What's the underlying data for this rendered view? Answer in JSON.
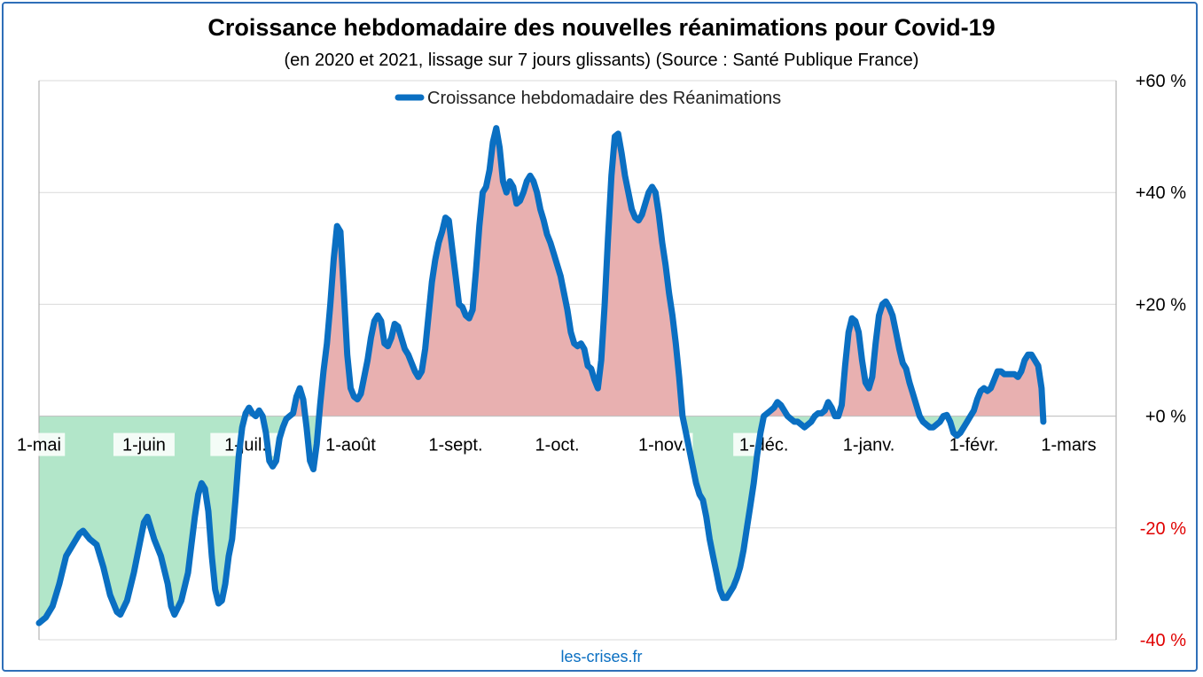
{
  "chart_data": {
    "type": "area",
    "title": "Croissance hebdomadaire des nouvelles réanimations pour Covid-19",
    "subtitle": "(en 2020 et 2021, lissage sur 7 jours glissants) (Source : Santé Publique France)",
    "source": "les-crises.fr",
    "xlabel": "",
    "ylabel": "",
    "ylim": [
      -40,
      60
    ],
    "yticks": [
      {
        "value": 60,
        "label": "+60 %"
      },
      {
        "value": 40,
        "label": "+40 %"
      },
      {
        "value": 20,
        "label": "+20 %"
      },
      {
        "value": 0,
        "label": "+0 %"
      },
      {
        "value": -20,
        "label": "-20 %"
      },
      {
        "value": -40,
        "label": "-40 %"
      }
    ],
    "xlim": [
      0,
      318
    ],
    "xticks": [
      {
        "day": 0,
        "label": "1-mai"
      },
      {
        "day": 31,
        "label": "1-juin"
      },
      {
        "day": 61,
        "label": "1-juil."
      },
      {
        "day": 92,
        "label": "1-août"
      },
      {
        "day": 123,
        "label": "1-sept."
      },
      {
        "day": 153,
        "label": "1-oct."
      },
      {
        "day": 184,
        "label": "1-nov."
      },
      {
        "day": 214,
        "label": "1-déc."
      },
      {
        "day": 245,
        "label": "1-janv."
      },
      {
        "day": 276,
        "label": "1-févr."
      },
      {
        "day": 304,
        "label": "1-mars"
      }
    ],
    "grid": true,
    "legend_position": "top",
    "y_axis_side": "right",
    "series": [
      {
        "name": "Croissance hebdomadaire des Réanimations",
        "color": "#0a6fc2",
        "positive_fill": "#e8b0b0",
        "negative_fill": "#b2e6c9",
        "negative_label_color": "#e00000",
        "points": [
          [
            0,
            -37
          ],
          [
            2,
            -36
          ],
          [
            4,
            -34
          ],
          [
            6,
            -30
          ],
          [
            8,
            -25
          ],
          [
            10,
            -23
          ],
          [
            12,
            -21
          ],
          [
            13,
            -20.5
          ],
          [
            15,
            -22
          ],
          [
            17,
            -23
          ],
          [
            19,
            -27
          ],
          [
            21,
            -32
          ],
          [
            23,
            -35
          ],
          [
            24,
            -35.5
          ],
          [
            26,
            -33
          ],
          [
            28,
            -28
          ],
          [
            30,
            -22
          ],
          [
            31,
            -19
          ],
          [
            32,
            -18
          ],
          [
            34,
            -22
          ],
          [
            36,
            -25
          ],
          [
            38,
            -30
          ],
          [
            39,
            -34
          ],
          [
            40,
            -35.5
          ],
          [
            42,
            -33
          ],
          [
            44,
            -28
          ],
          [
            45,
            -23
          ],
          [
            46,
            -18
          ],
          [
            47,
            -14
          ],
          [
            48,
            -12
          ],
          [
            49,
            -13
          ],
          [
            50,
            -17
          ],
          [
            51,
            -25
          ],
          [
            52,
            -31
          ],
          [
            53,
            -33.5
          ],
          [
            54,
            -33
          ],
          [
            55,
            -30
          ],
          [
            56,
            -25
          ],
          [
            57,
            -22
          ],
          [
            58,
            -15
          ],
          [
            59,
            -7
          ],
          [
            60,
            -2
          ],
          [
            61,
            0.5
          ],
          [
            62,
            1.5
          ],
          [
            63,
            0.5
          ],
          [
            64,
            0
          ],
          [
            65,
            1
          ],
          [
            66,
            0
          ],
          [
            67,
            -3
          ],
          [
            68,
            -8
          ],
          [
            69,
            -9
          ],
          [
            70,
            -8
          ],
          [
            71,
            -4
          ],
          [
            72,
            -2
          ],
          [
            73,
            -0.5
          ],
          [
            74,
            0
          ],
          [
            75,
            0.5
          ],
          [
            76,
            3.5
          ],
          [
            77,
            5
          ],
          [
            78,
            3
          ],
          [
            79,
            -2
          ],
          [
            80,
            -8
          ],
          [
            81,
            -9.5
          ],
          [
            82,
            -5
          ],
          [
            83,
            2
          ],
          [
            84,
            8
          ],
          [
            85,
            13
          ],
          [
            86,
            20
          ],
          [
            87,
            28
          ],
          [
            88,
            34
          ],
          [
            89,
            33
          ],
          [
            90,
            22
          ],
          [
            91,
            11
          ],
          [
            92,
            5
          ],
          [
            93,
            3.5
          ],
          [
            94,
            3
          ],
          [
            95,
            4
          ],
          [
            96,
            7
          ],
          [
            97,
            10
          ],
          [
            98,
            14
          ],
          [
            99,
            17
          ],
          [
            100,
            18
          ],
          [
            101,
            17
          ],
          [
            102,
            13
          ],
          [
            103,
            12.5
          ],
          [
            104,
            14
          ],
          [
            105,
            16.5
          ],
          [
            106,
            16
          ],
          [
            107,
            14
          ],
          [
            108,
            12
          ],
          [
            109,
            11
          ],
          [
            110,
            9.5
          ],
          [
            111,
            8
          ],
          [
            112,
            7
          ],
          [
            113,
            8
          ],
          [
            114,
            12
          ],
          [
            115,
            18
          ],
          [
            116,
            24
          ],
          [
            117,
            28
          ],
          [
            118,
            31
          ],
          [
            119,
            33
          ],
          [
            120,
            35.5
          ],
          [
            121,
            35
          ],
          [
            122,
            30
          ],
          [
            123,
            25
          ],
          [
            124,
            20
          ],
          [
            125,
            19.5
          ],
          [
            126,
            18
          ],
          [
            127,
            17.5
          ],
          [
            128,
            19
          ],
          [
            129,
            26
          ],
          [
            130,
            34
          ],
          [
            131,
            40
          ],
          [
            132,
            41
          ],
          [
            133,
            44
          ],
          [
            134,
            49
          ],
          [
            135,
            51.5
          ],
          [
            136,
            48
          ],
          [
            137,
            42
          ],
          [
            138,
            40
          ],
          [
            139,
            42
          ],
          [
            140,
            41
          ],
          [
            141,
            38
          ],
          [
            142,
            38.5
          ],
          [
            143,
            40
          ],
          [
            144,
            42
          ],
          [
            145,
            43
          ],
          [
            146,
            42
          ],
          [
            147,
            40
          ],
          [
            148,
            37
          ],
          [
            149,
            35
          ],
          [
            150,
            32.5
          ],
          [
            151,
            31
          ],
          [
            152,
            29
          ],
          [
            153,
            27
          ],
          [
            154,
            25
          ],
          [
            155,
            22
          ],
          [
            156,
            19
          ],
          [
            157,
            15
          ],
          [
            158,
            13
          ],
          [
            159,
            12.5
          ],
          [
            160,
            13
          ],
          [
            161,
            12
          ],
          [
            162,
            9
          ],
          [
            163,
            8.5
          ],
          [
            164,
            6.5
          ],
          [
            165,
            5
          ],
          [
            166,
            10
          ],
          [
            167,
            20
          ],
          [
            168,
            32
          ],
          [
            169,
            43
          ],
          [
            170,
            50
          ],
          [
            171,
            50.5
          ],
          [
            172,
            47
          ],
          [
            173,
            43
          ],
          [
            174,
            40
          ],
          [
            175,
            37
          ],
          [
            176,
            35.5
          ],
          [
            177,
            35
          ],
          [
            178,
            36
          ],
          [
            179,
            38
          ],
          [
            180,
            40
          ],
          [
            181,
            41
          ],
          [
            182,
            40
          ],
          [
            183,
            36
          ],
          [
            184,
            31
          ],
          [
            185,
            27
          ],
          [
            186,
            22
          ],
          [
            187,
            18
          ],
          [
            188,
            13
          ],
          [
            189,
            7
          ],
          [
            190,
            0
          ],
          [
            191,
            -3
          ],
          [
            192,
            -6
          ],
          [
            193,
            -9
          ],
          [
            194,
            -12
          ],
          [
            195,
            -14
          ],
          [
            196,
            -15
          ],
          [
            197,
            -18
          ],
          [
            198,
            -22
          ],
          [
            199,
            -25
          ],
          [
            200,
            -28
          ],
          [
            201,
            -31
          ],
          [
            202,
            -32.5
          ],
          [
            203,
            -32.5
          ],
          [
            204,
            -31.5
          ],
          [
            205,
            -30.5
          ],
          [
            206,
            -29
          ],
          [
            207,
            -27
          ],
          [
            208,
            -24
          ],
          [
            209,
            -20
          ],
          [
            210,
            -16
          ],
          [
            211,
            -12
          ],
          [
            212,
            -7
          ],
          [
            213,
            -3
          ],
          [
            214,
            0
          ],
          [
            215,
            0.5
          ],
          [
            216,
            1
          ],
          [
            217,
            1.5
          ],
          [
            218,
            2.5
          ],
          [
            219,
            2
          ],
          [
            220,
            1
          ],
          [
            221,
            0
          ],
          [
            222,
            -0.5
          ],
          [
            223,
            -1
          ],
          [
            224,
            -1
          ],
          [
            225,
            -1.5
          ],
          [
            226,
            -2
          ],
          [
            227,
            -1.5
          ],
          [
            228,
            -1
          ],
          [
            229,
            0
          ],
          [
            230,
            0.5
          ],
          [
            231,
            0.5
          ],
          [
            232,
            1
          ],
          [
            233,
            2.5
          ],
          [
            234,
            1.5
          ],
          [
            235,
            0
          ],
          [
            236,
            0
          ],
          [
            237,
            2
          ],
          [
            238,
            9
          ],
          [
            239,
            15
          ],
          [
            240,
            17.5
          ],
          [
            241,
            17
          ],
          [
            242,
            15
          ],
          [
            243,
            10
          ],
          [
            244,
            6
          ],
          [
            245,
            5
          ],
          [
            246,
            7
          ],
          [
            247,
            13
          ],
          [
            248,
            18
          ],
          [
            249,
            20
          ],
          [
            250,
            20.5
          ],
          [
            251,
            19.5
          ],
          [
            252,
            18
          ],
          [
            253,
            15
          ],
          [
            254,
            12
          ],
          [
            255,
            9.5
          ],
          [
            256,
            8.5
          ],
          [
            257,
            6
          ],
          [
            258,
            4
          ],
          [
            259,
            2
          ],
          [
            260,
            0
          ],
          [
            261,
            -1
          ],
          [
            262,
            -1.5
          ],
          [
            263,
            -2
          ],
          [
            264,
            -2
          ],
          [
            265,
            -1.5
          ],
          [
            266,
            -1
          ],
          [
            267,
            0
          ],
          [
            268,
            0.2
          ],
          [
            269,
            -1
          ],
          [
            270,
            -3
          ],
          [
            271,
            -3.5
          ],
          [
            272,
            -3
          ],
          [
            273,
            -2
          ],
          [
            274,
            -1
          ],
          [
            275,
            0
          ],
          [
            276,
            1
          ],
          [
            277,
            3
          ],
          [
            278,
            4.5
          ],
          [
            279,
            5
          ],
          [
            280,
            4.5
          ],
          [
            281,
            5
          ],
          [
            282,
            6.5
          ],
          [
            283,
            8
          ],
          [
            284,
            8
          ],
          [
            285,
            7.5
          ],
          [
            286,
            7.5
          ],
          [
            287,
            7.5
          ],
          [
            288,
            7.5
          ],
          [
            289,
            7
          ],
          [
            290,
            8
          ],
          [
            291,
            10
          ],
          [
            292,
            11
          ],
          [
            293,
            11
          ],
          [
            294,
            10
          ],
          [
            295,
            9
          ],
          [
            296,
            5
          ],
          [
            296.5,
            -1
          ]
        ]
      }
    ]
  }
}
